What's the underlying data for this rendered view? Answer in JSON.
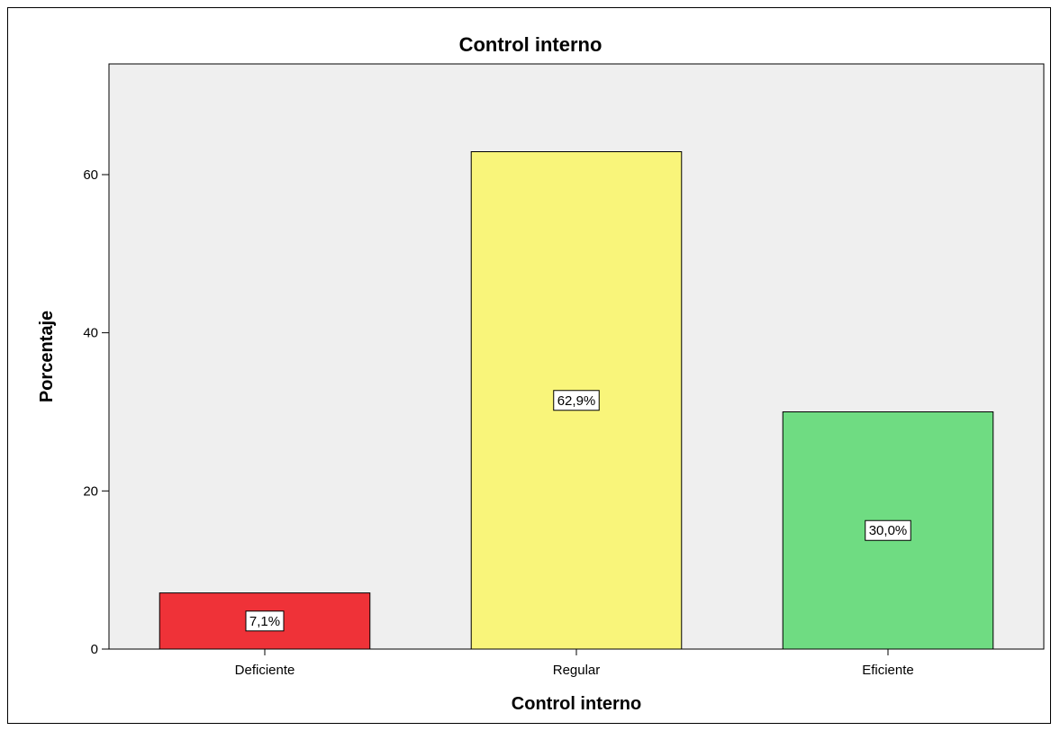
{
  "chart_data": {
    "type": "bar",
    "title": "Control interno",
    "xlabel": "Control interno",
    "ylabel": "Porcentaje",
    "categories": [
      "Deficiente",
      "Regular",
      "Eficiente"
    ],
    "values": [
      7.1,
      62.9,
      30.0
    ],
    "data_labels": [
      "7,1%",
      "62,9%",
      "30,0%"
    ],
    "colors": [
      "#ef3238",
      "#f9f57a",
      "#6fdc82"
    ],
    "ylim": [
      0,
      74
    ],
    "yticks": [
      0,
      20,
      40,
      60
    ],
    "plot_background": "#efefef",
    "grid": false
  }
}
